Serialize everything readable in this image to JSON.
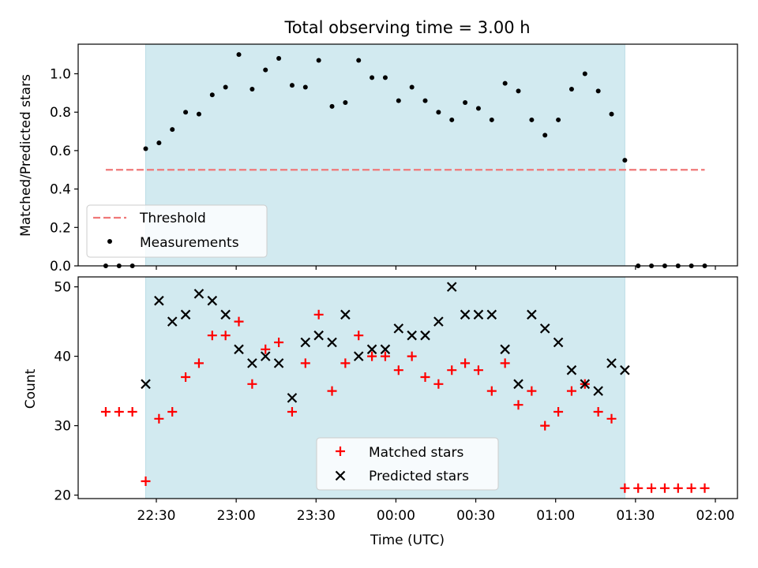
{
  "chart_data": [
    {
      "type": "scatter",
      "title": "Total observing time = 3.00 h",
      "xlabel": "",
      "ylabel": "Matched/Predicted stars",
      "ylim": [
        0,
        1.15
      ],
      "yticks": [
        "0.0",
        "0.2",
        "0.4",
        "0.6",
        "0.8",
        "1.0"
      ],
      "shaded_region": {
        "x_start": "22:26",
        "x_end": "01:26",
        "color": "#d2eaf0"
      },
      "threshold": {
        "name": "Threshold",
        "value": 0.5,
        "x_start": "22:11",
        "x_end": "01:56",
        "color": "#f07878"
      },
      "legend": {
        "position": "lower-left",
        "entries": [
          "Threshold",
          "Measurements"
        ]
      },
      "series": [
        {
          "name": "Measurements",
          "color": "#000000",
          "x": [
            "22:11",
            "22:16",
            "22:21",
            "22:26",
            "22:31",
            "22:36",
            "22:41",
            "22:46",
            "22:51",
            "22:56",
            "23:01",
            "23:06",
            "23:11",
            "23:16",
            "23:21",
            "23:26",
            "23:31",
            "23:36",
            "23:41",
            "23:46",
            "23:51",
            "23:56",
            "00:01",
            "00:06",
            "00:11",
            "00:16",
            "00:21",
            "00:26",
            "00:31",
            "00:36",
            "00:41",
            "00:46",
            "00:51",
            "00:56",
            "01:01",
            "01:06",
            "01:11",
            "01:16",
            "01:21",
            "01:26",
            "01:31",
            "01:36",
            "01:41",
            "01:46",
            "01:51",
            "01:56"
          ],
          "y": [
            0,
            0,
            0,
            0.61,
            0.64,
            0.71,
            0.8,
            0.79,
            0.89,
            0.93,
            1.1,
            0.92,
            1.02,
            1.08,
            0.94,
            0.93,
            1.07,
            0.83,
            0.85,
            1.07,
            0.98,
            0.98,
            0.86,
            0.93,
            0.86,
            0.8,
            0.76,
            0.85,
            0.82,
            0.76,
            0.95,
            0.91,
            0.76,
            0.68,
            0.76,
            0.92,
            1.0,
            0.91,
            0.79,
            0.55,
            0,
            0,
            0,
            0,
            0,
            0
          ]
        }
      ]
    },
    {
      "type": "scatter",
      "title": "",
      "xlabel": "Time (UTC)",
      "ylabel": "Count",
      "ylim": [
        19.5,
        51.5
      ],
      "yticks": [
        "20",
        "30",
        "40",
        "50"
      ],
      "xticks": [
        "22:30",
        "23:00",
        "23:30",
        "00:00",
        "00:30",
        "01:00",
        "01:30",
        "02:00"
      ],
      "shaded_region": {
        "x_start": "22:26",
        "x_end": "01:26",
        "color": "#d2eaf0"
      },
      "legend": {
        "position": "lower-center",
        "entries": [
          "Matched stars",
          "Predicted stars"
        ]
      },
      "series": [
        {
          "name": "Matched stars",
          "marker": "plus",
          "color": "#ff0000",
          "x": [
            "22:11",
            "22:16",
            "22:21",
            "22:26",
            "22:31",
            "22:36",
            "22:41",
            "22:46",
            "22:51",
            "22:56",
            "23:01",
            "23:06",
            "23:11",
            "23:16",
            "23:21",
            "23:26",
            "23:31",
            "23:36",
            "23:41",
            "23:46",
            "23:51",
            "23:56",
            "00:01",
            "00:06",
            "00:11",
            "00:16",
            "00:21",
            "00:26",
            "00:31",
            "00:36",
            "00:41",
            "00:46",
            "00:51",
            "00:56",
            "01:01",
            "01:06",
            "01:11",
            "01:16",
            "01:21",
            "01:26",
            "01:31",
            "01:36",
            "01:41",
            "01:46",
            "01:51",
            "01:56"
          ],
          "y": [
            32,
            32,
            32,
            22,
            31,
            32,
            37,
            39,
            43,
            43,
            45,
            36,
            41,
            42,
            32,
            39,
            46,
            35,
            39,
            43,
            40,
            40,
            38,
            40,
            37,
            36,
            38,
            39,
            38,
            35,
            39,
            33,
            35,
            30,
            32,
            35,
            36,
            32,
            31,
            21,
            21,
            21,
            21,
            21,
            21,
            21
          ]
        },
        {
          "name": "Predicted stars",
          "marker": "x",
          "color": "#000000",
          "x": [
            "22:26",
            "22:31",
            "22:36",
            "22:41",
            "22:46",
            "22:51",
            "22:56",
            "23:01",
            "23:06",
            "23:11",
            "23:16",
            "23:21",
            "23:26",
            "23:31",
            "23:36",
            "23:41",
            "23:46",
            "23:51",
            "23:56",
            "00:01",
            "00:06",
            "00:11",
            "00:16",
            "00:21",
            "00:26",
            "00:31",
            "00:36",
            "00:41",
            "00:46",
            "00:51",
            "00:56",
            "01:01",
            "01:06",
            "01:11",
            "01:16",
            "01:21",
            "01:26"
          ],
          "y": [
            36,
            48,
            45,
            46,
            49,
            48,
            46,
            41,
            39,
            40,
            39,
            34,
            42,
            43,
            42,
            46,
            40,
            41,
            41,
            44,
            43,
            43,
            45,
            50,
            46,
            46,
            46,
            41,
            36,
            46,
            44,
            42,
            38,
            36,
            35,
            39,
            38
          ]
        }
      ]
    }
  ]
}
